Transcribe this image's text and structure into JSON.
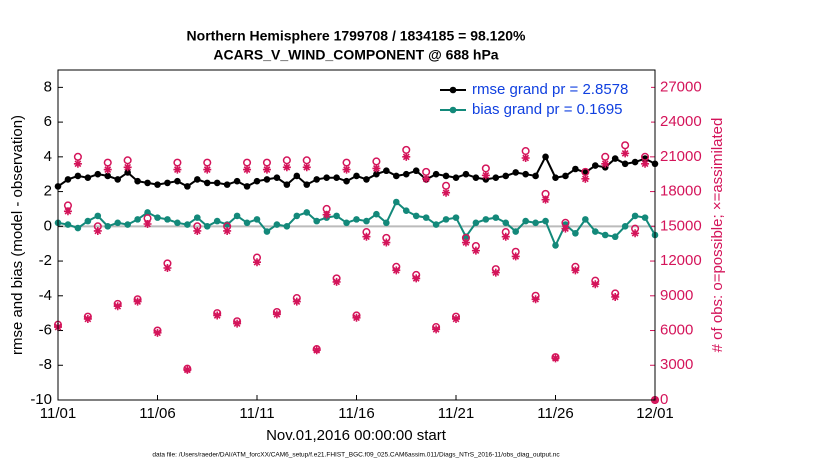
{
  "chart_data": {
    "type": "line",
    "title": "Northern Hemisphere 1799708 / 1834185 = 98.120%",
    "subtitle": "ACARS_V_WIND_COMPONENT @ 688 hPa",
    "xlabel": "Nov.01,2016 00:00:00 start",
    "ylabel": "rmse and bias (model - observation)",
    "y2label": "# of obs: o=possible; ×=assimilated",
    "footnote": "data file: /Users/raeder/DAI/ATM_forcXX/CAM6_setup/f.e21.FHIST_BGC.f09_025.CAM6assim.011/Diags_NTrS_2016-11/obs_diag_output.nc",
    "x": [
      1,
      1.5,
      2,
      2.5,
      3,
      3.5,
      4,
      4.5,
      5,
      5.5,
      6,
      6.5,
      7,
      7.5,
      8,
      8.5,
      9,
      9.5,
      10,
      10.5,
      11,
      11.5,
      12,
      12.5,
      13,
      13.5,
      14,
      14.5,
      15,
      15.5,
      16,
      16.5,
      17,
      17.5,
      18,
      18.5,
      19,
      19.5,
      20,
      20.5,
      21,
      21.5,
      22,
      22.5,
      23,
      23.5,
      24,
      24.5,
      25,
      25.5,
      26,
      26.5,
      27,
      27.5,
      28,
      28.5,
      29,
      29.5,
      30,
      30.5,
      31
    ],
    "xlim": [
      1,
      31
    ],
    "xticks": [
      {
        "value": 1,
        "label": "11/01"
      },
      {
        "value": 6,
        "label": "11/06"
      },
      {
        "value": 11,
        "label": "11/11"
      },
      {
        "value": 16,
        "label": "11/16"
      },
      {
        "value": 21,
        "label": "11/21"
      },
      {
        "value": 26,
        "label": "11/26"
      },
      {
        "value": 31,
        "label": "12/01"
      }
    ],
    "ylim": [
      -10,
      9
    ],
    "yticks": [
      -10,
      -8,
      -6,
      -4,
      -2,
      0,
      2,
      4,
      6,
      8
    ],
    "y2lim": [
      0,
      28500
    ],
    "y2ticks": [
      0,
      3000,
      6000,
      9000,
      12000,
      15000,
      18000,
      21000,
      24000,
      27000
    ],
    "zero_line": true,
    "legend": "upper right",
    "legend_text_color": "#1040e0",
    "series": [
      {
        "name": "rmse grand pr = 2.8578",
        "color": "#000000",
        "marker": "dot",
        "axis": "y",
        "values": [
          2.3,
          2.7,
          2.9,
          2.8,
          3.0,
          2.9,
          2.7,
          3.1,
          2.6,
          2.5,
          2.4,
          2.5,
          2.6,
          2.3,
          2.7,
          2.5,
          2.5,
          2.4,
          2.6,
          2.3,
          2.6,
          2.7,
          2.8,
          2.4,
          2.9,
          2.4,
          2.7,
          2.8,
          2.8,
          2.6,
          2.9,
          2.7,
          3.0,
          3.2,
          2.9,
          3.0,
          3.2,
          2.7,
          3.0,
          2.9,
          2.8,
          3.0,
          2.8,
          2.7,
          2.8,
          2.9,
          3.1,
          3.0,
          2.9,
          4.0,
          2.8,
          2.9,
          3.3,
          3.1,
          3.5,
          3.4,
          3.9,
          3.6,
          3.7,
          3.9,
          3.6
        ]
      },
      {
        "name": "bias grand pr = 0.1695",
        "color": "#13897a",
        "marker": "dot",
        "axis": "y",
        "values": [
          0.2,
          0.1,
          -0.1,
          0.3,
          0.6,
          0.0,
          0.2,
          0.1,
          0.4,
          0.8,
          0.5,
          0.4,
          0.2,
          0.1,
          0.5,
          0.0,
          0.3,
          0.1,
          0.6,
          0.2,
          0.4,
          -0.3,
          0.1,
          0.0,
          0.6,
          0.8,
          0.3,
          0.5,
          0.6,
          0.2,
          0.4,
          0.3,
          0.7,
          0.2,
          1.4,
          0.9,
          0.6,
          0.5,
          0.1,
          0.4,
          0.5,
          -0.6,
          0.2,
          0.4,
          0.5,
          0.2,
          -0.3,
          0.3,
          0.2,
          0.3,
          -1.1,
          0.1,
          -0.4,
          0.4,
          -0.3,
          -0.5,
          -0.6,
          0.0,
          0.6,
          0.5,
          -0.5
        ]
      },
      {
        "color": "#d4145a",
        "marker": "circle",
        "axis": "y2",
        "values": [
          6500,
          16800,
          21000,
          7200,
          15000,
          20500,
          8300,
          20700,
          8700,
          15700,
          6000,
          11800,
          20500,
          2700,
          15000,
          20500,
          7500,
          15000,
          6800,
          20500,
          12300,
          20500,
          7600,
          20700,
          8800,
          20700,
          4400,
          16500,
          10500,
          20500,
          7300,
          14500,
          20600,
          14000,
          11500,
          21600,
          10800,
          19700,
          6300,
          18500,
          7200,
          14000,
          13300,
          20000,
          11300,
          14500,
          12800,
          21500,
          9000,
          17800,
          3700,
          15300,
          11500,
          19700,
          10300,
          21000,
          9200,
          22000,
          14800,
          21000,
          0
        ]
      },
      {
        "color": "#d4145a",
        "marker": "star",
        "axis": "y2",
        "values": [
          6300,
          16300,
          20400,
          7000,
          14600,
          19900,
          8100,
          20100,
          8500,
          15200,
          5800,
          11400,
          19900,
          2600,
          14600,
          19900,
          7300,
          14600,
          6600,
          19900,
          11900,
          19900,
          7400,
          20100,
          8500,
          20100,
          4300,
          16000,
          10200,
          19900,
          7100,
          14100,
          20000,
          13600,
          11200,
          21000,
          10500,
          19100,
          6100,
          17900,
          7000,
          13600,
          12900,
          19400,
          11000,
          14100,
          12400,
          20900,
          8700,
          17300,
          3600,
          14800,
          11200,
          19100,
          10000,
          20400,
          8900,
          21300,
          14400,
          20400,
          0
        ]
      }
    ]
  }
}
